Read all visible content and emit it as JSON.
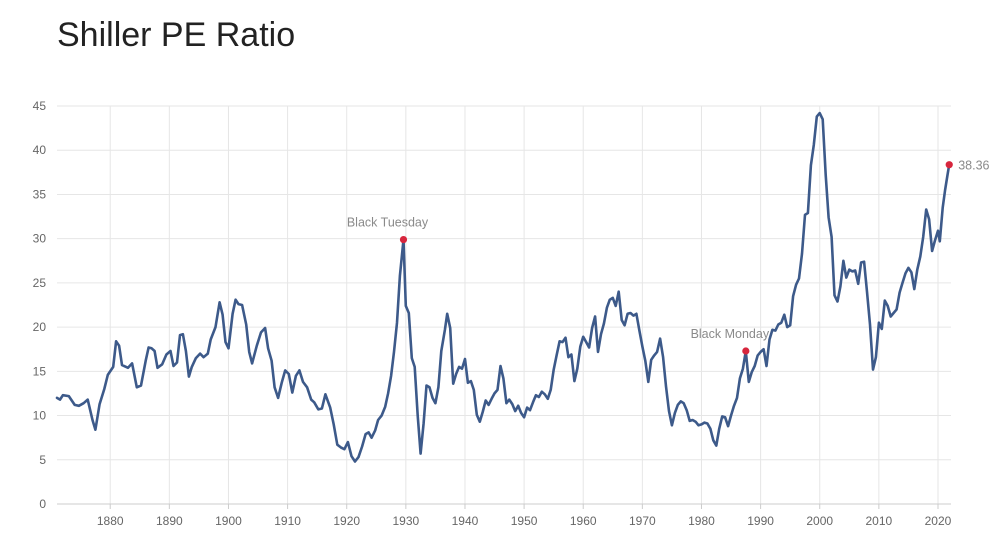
{
  "chart_data": {
    "type": "line",
    "title": "Shiller PE Ratio",
    "xlabel": "",
    "ylabel": "",
    "xlim": [
      1871,
      2022.2
    ],
    "ylim": [
      0,
      45
    ],
    "x_ticks": [
      1880,
      1890,
      1900,
      1910,
      1920,
      1930,
      1940,
      1950,
      1960,
      1970,
      1980,
      1990,
      2000,
      2010,
      2020
    ],
    "y_ticks": [
      0,
      5,
      10,
      15,
      20,
      25,
      30,
      35,
      40,
      45
    ],
    "grid": true,
    "legend": "none",
    "colors": {
      "line": "#3d5a8a",
      "marker": "#d7263d",
      "grid": "#e6e6e6",
      "axis": "#cccccc",
      "title": "#222222",
      "tick": "#666666",
      "annotation": "#8a8a8a"
    },
    "series": [
      {
        "points": [
          [
            1871.0,
            12.0
          ],
          [
            1871.5,
            11.8
          ],
          [
            1872.0,
            12.3
          ],
          [
            1873.0,
            12.2
          ],
          [
            1874.0,
            11.2
          ],
          [
            1874.7,
            11.1
          ],
          [
            1875.5,
            11.4
          ],
          [
            1876.2,
            11.8
          ],
          [
            1877.0,
            9.5
          ],
          [
            1877.5,
            8.4
          ],
          [
            1878.2,
            11.3
          ],
          [
            1879.0,
            13.0
          ],
          [
            1879.6,
            14.6
          ],
          [
            1880.5,
            15.5
          ],
          [
            1881.0,
            18.4
          ],
          [
            1881.5,
            17.9
          ],
          [
            1882.0,
            15.7
          ],
          [
            1883.0,
            15.4
          ],
          [
            1883.7,
            15.9
          ],
          [
            1884.5,
            13.2
          ],
          [
            1885.2,
            13.4
          ],
          [
            1886.0,
            16.2
          ],
          [
            1886.5,
            17.7
          ],
          [
            1887.0,
            17.6
          ],
          [
            1887.5,
            17.3
          ],
          [
            1888.0,
            15.4
          ],
          [
            1888.8,
            15.8
          ],
          [
            1889.5,
            16.9
          ],
          [
            1890.2,
            17.3
          ],
          [
            1890.7,
            15.6
          ],
          [
            1891.3,
            16.0
          ],
          [
            1891.8,
            19.1
          ],
          [
            1892.3,
            19.2
          ],
          [
            1892.8,
            17.3
          ],
          [
            1893.3,
            14.4
          ],
          [
            1893.8,
            15.5
          ],
          [
            1894.5,
            16.5
          ],
          [
            1895.2,
            17.0
          ],
          [
            1895.8,
            16.6
          ],
          [
            1896.5,
            17.0
          ],
          [
            1897.0,
            18.6
          ],
          [
            1897.8,
            20.0
          ],
          [
            1898.5,
            22.8
          ],
          [
            1899.0,
            21.4
          ],
          [
            1899.5,
            18.3
          ],
          [
            1900.0,
            17.6
          ],
          [
            1900.7,
            21.5
          ],
          [
            1901.2,
            23.1
          ],
          [
            1901.7,
            22.6
          ],
          [
            1902.3,
            22.5
          ],
          [
            1903.0,
            20.3
          ],
          [
            1903.5,
            17.2
          ],
          [
            1904.0,
            15.9
          ],
          [
            1904.8,
            17.9
          ],
          [
            1905.5,
            19.4
          ],
          [
            1906.2,
            19.9
          ],
          [
            1906.7,
            17.6
          ],
          [
            1907.3,
            16.2
          ],
          [
            1907.8,
            13.2
          ],
          [
            1908.4,
            12.0
          ],
          [
            1909.0,
            13.7
          ],
          [
            1909.6,
            15.1
          ],
          [
            1910.2,
            14.7
          ],
          [
            1910.8,
            12.6
          ],
          [
            1911.4,
            14.5
          ],
          [
            1912.0,
            15.1
          ],
          [
            1912.6,
            13.8
          ],
          [
            1913.3,
            13.2
          ],
          [
            1914.0,
            11.8
          ],
          [
            1914.5,
            11.5
          ],
          [
            1915.2,
            10.7
          ],
          [
            1915.8,
            10.8
          ],
          [
            1916.4,
            12.4
          ],
          [
            1917.2,
            10.9
          ],
          [
            1917.8,
            9.0
          ],
          [
            1918.4,
            6.7
          ],
          [
            1919.0,
            6.4
          ],
          [
            1919.6,
            6.2
          ],
          [
            1920.2,
            7.0
          ],
          [
            1920.8,
            5.4
          ],
          [
            1921.4,
            4.8
          ],
          [
            1922.0,
            5.3
          ],
          [
            1922.6,
            6.5
          ],
          [
            1923.2,
            7.9
          ],
          [
            1923.7,
            8.1
          ],
          [
            1924.2,
            7.5
          ],
          [
            1924.8,
            8.3
          ],
          [
            1925.3,
            9.5
          ],
          [
            1925.9,
            10.0
          ],
          [
            1926.5,
            11.0
          ],
          [
            1927.0,
            12.5
          ],
          [
            1927.5,
            14.5
          ],
          [
            1928.0,
            17.2
          ],
          [
            1928.5,
            20.5
          ],
          [
            1929.0,
            25.8
          ],
          [
            1929.6,
            29.9
          ],
          [
            1930.0,
            22.4
          ],
          [
            1930.5,
            21.6
          ],
          [
            1931.0,
            16.5
          ],
          [
            1931.5,
            15.5
          ],
          [
            1932.0,
            10.0
          ],
          [
            1932.5,
            5.7
          ],
          [
            1933.0,
            9.1
          ],
          [
            1933.5,
            13.4
          ],
          [
            1934.0,
            13.2
          ],
          [
            1934.5,
            12.0
          ],
          [
            1935.0,
            11.4
          ],
          [
            1935.5,
            13.2
          ],
          [
            1936.0,
            17.3
          ],
          [
            1936.6,
            19.7
          ],
          [
            1937.0,
            21.5
          ],
          [
            1937.5,
            19.9
          ],
          [
            1938.0,
            13.6
          ],
          [
            1938.5,
            14.7
          ],
          [
            1939.0,
            15.5
          ],
          [
            1939.5,
            15.3
          ],
          [
            1940.0,
            16.4
          ],
          [
            1940.5,
            13.7
          ],
          [
            1941.0,
            13.9
          ],
          [
            1941.5,
            12.9
          ],
          [
            1942.0,
            10.1
          ],
          [
            1942.5,
            9.3
          ],
          [
            1943.0,
            10.4
          ],
          [
            1943.5,
            11.7
          ],
          [
            1944.0,
            11.2
          ],
          [
            1944.5,
            11.9
          ],
          [
            1945.0,
            12.5
          ],
          [
            1945.5,
            12.9
          ],
          [
            1946.0,
            15.6
          ],
          [
            1946.5,
            14.2
          ],
          [
            1947.0,
            11.4
          ],
          [
            1947.5,
            11.8
          ],
          [
            1948.0,
            11.3
          ],
          [
            1948.5,
            10.5
          ],
          [
            1949.0,
            11.1
          ],
          [
            1949.5,
            10.3
          ],
          [
            1950.0,
            9.8
          ],
          [
            1950.5,
            10.9
          ],
          [
            1951.0,
            10.6
          ],
          [
            1951.5,
            11.5
          ],
          [
            1952.0,
            12.3
          ],
          [
            1952.5,
            12.1
          ],
          [
            1953.0,
            12.7
          ],
          [
            1953.5,
            12.4
          ],
          [
            1954.0,
            11.9
          ],
          [
            1954.5,
            12.9
          ],
          [
            1955.0,
            15.2
          ],
          [
            1955.5,
            16.8
          ],
          [
            1956.0,
            18.4
          ],
          [
            1956.5,
            18.3
          ],
          [
            1957.0,
            18.8
          ],
          [
            1957.5,
            16.6
          ],
          [
            1958.0,
            16.9
          ],
          [
            1958.5,
            13.9
          ],
          [
            1959.0,
            15.3
          ],
          [
            1959.5,
            17.8
          ],
          [
            1960.0,
            18.9
          ],
          [
            1960.5,
            18.3
          ],
          [
            1961.0,
            17.7
          ],
          [
            1961.5,
            19.9
          ],
          [
            1962.0,
            21.2
          ],
          [
            1962.5,
            17.2
          ],
          [
            1963.0,
            19.2
          ],
          [
            1963.5,
            20.4
          ],
          [
            1964.0,
            22.2
          ],
          [
            1964.5,
            23.1
          ],
          [
            1965.0,
            23.3
          ],
          [
            1965.5,
            22.4
          ],
          [
            1966.0,
            24.0
          ],
          [
            1966.5,
            20.8
          ],
          [
            1967.0,
            20.2
          ],
          [
            1967.5,
            21.5
          ],
          [
            1968.0,
            21.6
          ],
          [
            1968.5,
            21.3
          ],
          [
            1969.0,
            21.5
          ],
          [
            1969.5,
            19.6
          ],
          [
            1970.0,
            17.8
          ],
          [
            1970.5,
            16.2
          ],
          [
            1971.0,
            13.8
          ],
          [
            1971.5,
            16.3
          ],
          [
            1972.0,
            16.8
          ],
          [
            1972.5,
            17.2
          ],
          [
            1973.0,
            18.7
          ],
          [
            1973.5,
            16.6
          ],
          [
            1974.0,
            13.3
          ],
          [
            1974.5,
            10.5
          ],
          [
            1975.0,
            8.9
          ],
          [
            1975.5,
            10.3
          ],
          [
            1976.0,
            11.2
          ],
          [
            1976.5,
            11.6
          ],
          [
            1977.0,
            11.4
          ],
          [
            1977.5,
            10.6
          ],
          [
            1978.0,
            9.4
          ],
          [
            1978.5,
            9.5
          ],
          [
            1979.0,
            9.3
          ],
          [
            1979.5,
            8.9
          ],
          [
            1980.0,
            9.0
          ],
          [
            1980.5,
            9.2
          ],
          [
            1981.0,
            9.1
          ],
          [
            1981.5,
            8.5
          ],
          [
            1982.0,
            7.2
          ],
          [
            1982.5,
            6.6
          ],
          [
            1983.0,
            8.5
          ],
          [
            1983.5,
            9.9
          ],
          [
            1984.0,
            9.8
          ],
          [
            1984.5,
            8.8
          ],
          [
            1985.0,
            10.0
          ],
          [
            1985.5,
            11.1
          ],
          [
            1986.0,
            12.0
          ],
          [
            1986.5,
            14.2
          ],
          [
            1987.0,
            15.3
          ],
          [
            1987.5,
            17.3
          ],
          [
            1988.0,
            13.8
          ],
          [
            1988.5,
            14.9
          ],
          [
            1989.0,
            15.6
          ],
          [
            1989.5,
            16.8
          ],
          [
            1990.0,
            17.2
          ],
          [
            1990.5,
            17.5
          ],
          [
            1991.0,
            15.6
          ],
          [
            1991.5,
            18.6
          ],
          [
            1992.0,
            19.7
          ],
          [
            1992.5,
            19.6
          ],
          [
            1993.0,
            20.3
          ],
          [
            1993.5,
            20.5
          ],
          [
            1994.0,
            21.4
          ],
          [
            1994.5,
            20.0
          ],
          [
            1995.0,
            20.2
          ],
          [
            1995.5,
            23.5
          ],
          [
            1996.0,
            24.8
          ],
          [
            1996.5,
            25.5
          ],
          [
            1997.0,
            28.3
          ],
          [
            1997.5,
            32.7
          ],
          [
            1998.0,
            32.9
          ],
          [
            1998.5,
            38.3
          ],
          [
            1999.0,
            40.6
          ],
          [
            1999.5,
            43.8
          ],
          [
            2000.0,
            44.2
          ],
          [
            2000.5,
            43.5
          ],
          [
            2001.0,
            37.2
          ],
          [
            2001.5,
            32.4
          ],
          [
            2002.0,
            30.2
          ],
          [
            2002.5,
            23.6
          ],
          [
            2003.0,
            22.9
          ],
          [
            2003.5,
            24.6
          ],
          [
            2004.0,
            27.5
          ],
          [
            2004.5,
            25.6
          ],
          [
            2005.0,
            26.5
          ],
          [
            2005.5,
            26.3
          ],
          [
            2006.0,
            26.4
          ],
          [
            2006.5,
            24.9
          ],
          [
            2007.0,
            27.3
          ],
          [
            2007.5,
            27.4
          ],
          [
            2008.0,
            24.0
          ],
          [
            2008.5,
            20.3
          ],
          [
            2009.0,
            15.2
          ],
          [
            2009.5,
            16.6
          ],
          [
            2010.0,
            20.5
          ],
          [
            2010.5,
            19.8
          ],
          [
            2011.0,
            23.0
          ],
          [
            2011.5,
            22.4
          ],
          [
            2012.0,
            21.2
          ],
          [
            2012.5,
            21.6
          ],
          [
            2013.0,
            22.0
          ],
          [
            2013.5,
            23.9
          ],
          [
            2014.0,
            25.0
          ],
          [
            2014.5,
            26.1
          ],
          [
            2015.0,
            26.7
          ],
          [
            2015.5,
            26.2
          ],
          [
            2016.0,
            24.3
          ],
          [
            2016.5,
            26.5
          ],
          [
            2017.0,
            28.0
          ],
          [
            2017.5,
            30.2
          ],
          [
            2018.0,
            33.3
          ],
          [
            2018.5,
            32.2
          ],
          [
            2019.0,
            28.6
          ],
          [
            2019.5,
            29.8
          ],
          [
            2020.0,
            30.9
          ],
          [
            2020.3,
            29.7
          ],
          [
            2020.8,
            33.5
          ],
          [
            2021.2,
            35.5
          ],
          [
            2021.6,
            37.2
          ],
          [
            2021.9,
            38.36
          ]
        ]
      }
    ],
    "annotations": [
      {
        "label": "Black Tuesday",
        "x": 1929.6,
        "y": 29.9
      },
      {
        "label": "Black Monday",
        "x": 1987.5,
        "y": 17.3
      },
      {
        "label": "38.36",
        "x": 2021.9,
        "y": 38.36
      }
    ]
  }
}
